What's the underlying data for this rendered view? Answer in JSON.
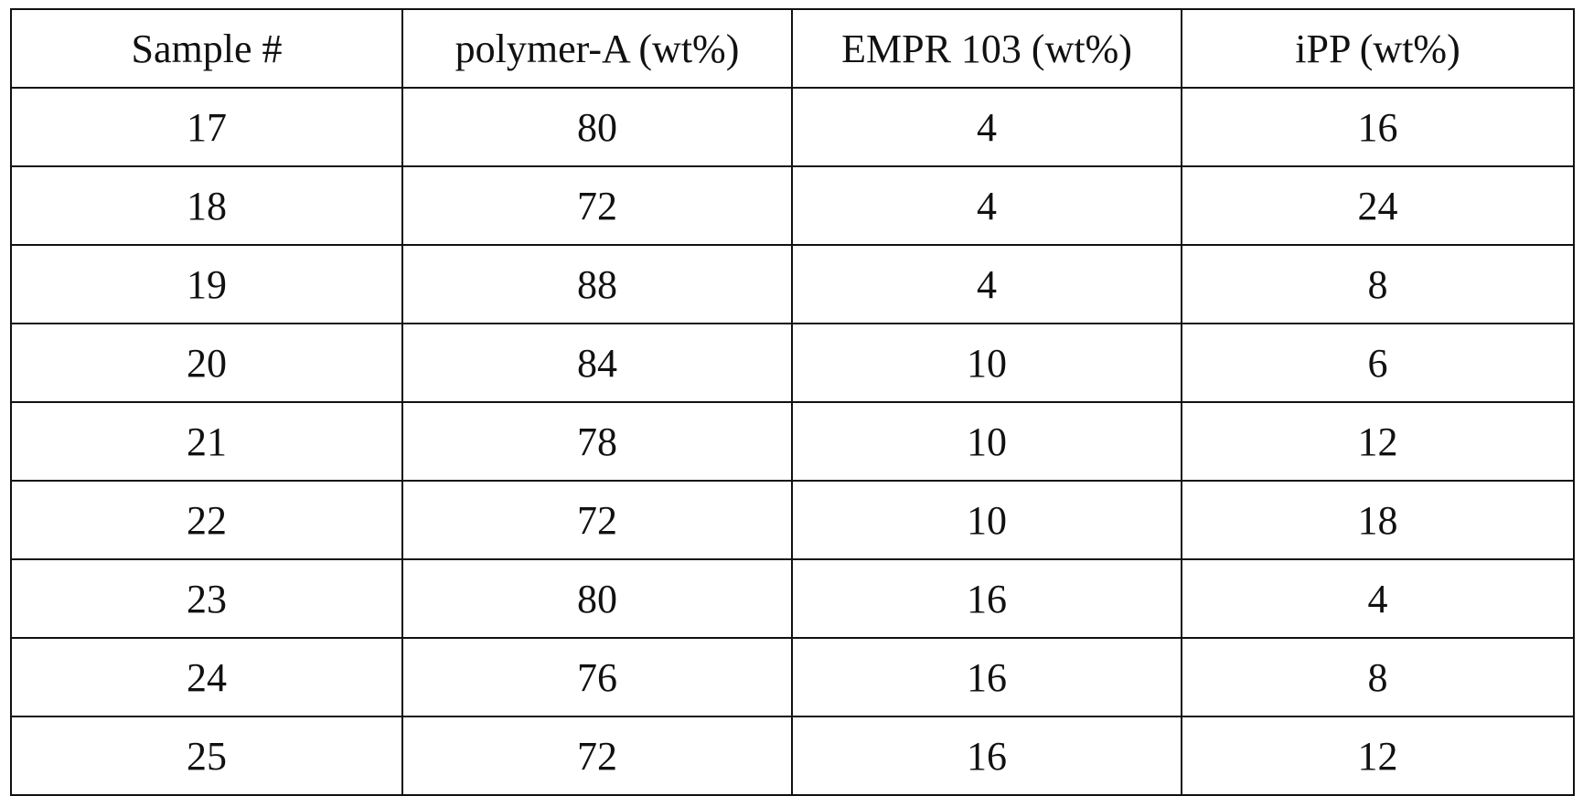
{
  "table": {
    "header": [
      "Sample #",
      "polymer-A (wt%)",
      "EMPR 103 (wt%)",
      "iPP (wt%)"
    ],
    "rows": [
      [
        17,
        80,
        4,
        16
      ],
      [
        18,
        72,
        4,
        24
      ],
      [
        19,
        88,
        4,
        8
      ],
      [
        20,
        84,
        10,
        6
      ],
      [
        21,
        78,
        10,
        12
      ],
      [
        22,
        72,
        10,
        18
      ],
      [
        23,
        80,
        16,
        4
      ],
      [
        24,
        76,
        16,
        8
      ],
      [
        25,
        72,
        16,
        12
      ]
    ]
  }
}
